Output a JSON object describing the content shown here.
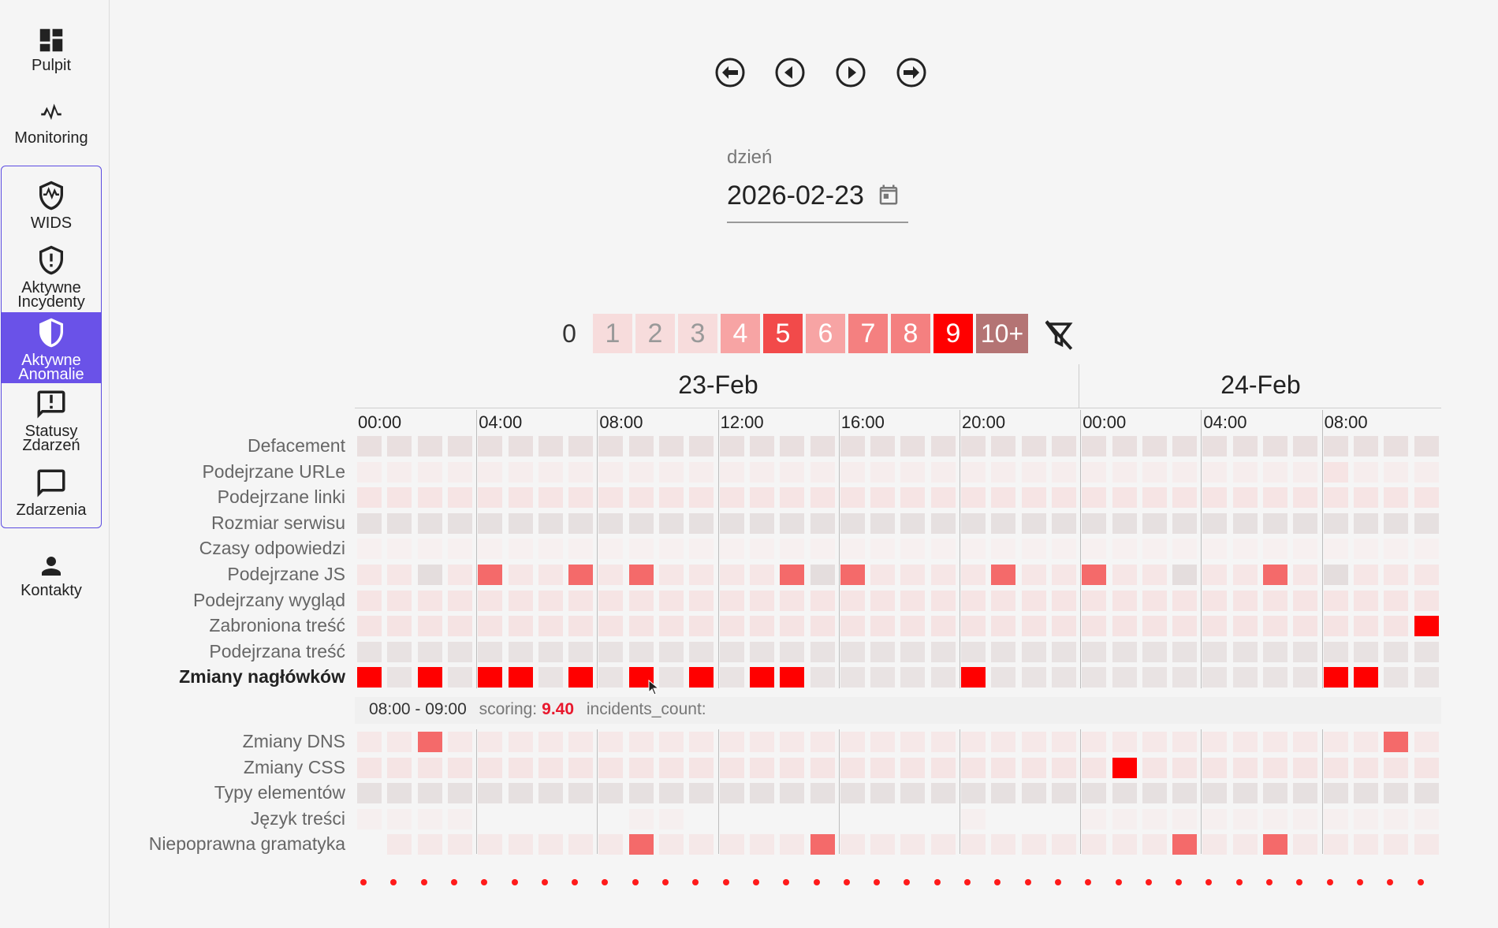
{
  "sidebar": {
    "items": [
      {
        "id": "pulpit",
        "label": "Pulpit",
        "icon": "dashboard-icon"
      },
      {
        "id": "monitoring",
        "label": "Monitoring",
        "icon": "pulse-icon"
      },
      {
        "id": "wids",
        "label": "WIDS",
        "icon": "shield-pulse-icon"
      },
      {
        "id": "incydenty",
        "label_1": "Aktywne",
        "label_2": "Incydenty",
        "icon": "shield-alert-icon"
      },
      {
        "id": "anomalie",
        "label_1": "Aktywne",
        "label_2": "Anomalie",
        "icon": "half-shield-icon",
        "active": true
      },
      {
        "id": "statusy",
        "label_1": "Statusy",
        "label_2": "Zdarzeń",
        "icon": "message-alert-icon"
      },
      {
        "id": "zdarzenia",
        "label": "Zdarzenia",
        "icon": "message-icon"
      },
      {
        "id": "kontakty",
        "label": "Kontakty",
        "icon": "person-icon"
      }
    ]
  },
  "date_picker": {
    "label": "dzień",
    "value": "2026-02-23"
  },
  "legend": {
    "items": [
      {
        "text": "0",
        "bg": "transparent",
        "fg": "#333"
      },
      {
        "text": "1",
        "bg": "#f7dcdc",
        "fg": "#999"
      },
      {
        "text": "2",
        "bg": "#f7dcdc",
        "fg": "#999"
      },
      {
        "text": "3",
        "bg": "#f7dcdc",
        "fg": "#999"
      },
      {
        "text": "4",
        "bg": "#f7a4a4",
        "fg": "#fff"
      },
      {
        "text": "5",
        "bg": "#f24a4a",
        "fg": "#fff"
      },
      {
        "text": "6",
        "bg": "#f7a4a4",
        "fg": "#fff"
      },
      {
        "text": "7",
        "bg": "#f48080",
        "fg": "#fff"
      },
      {
        "text": "8",
        "bg": "#f48080",
        "fg": "#fff"
      },
      {
        "text": "9",
        "bg": "#ff0000",
        "fg": "#fff"
      },
      {
        "text": "10+",
        "bg": "#b47474",
        "fg": "#fff"
      }
    ]
  },
  "heatmap": {
    "days": [
      "23-Feb",
      "24-Feb"
    ],
    "hours": [
      "00:00",
      "04:00",
      "08:00",
      "12:00",
      "16:00",
      "20:00",
      "00:00",
      "04:00",
      "08:00"
    ],
    "rows_top": [
      {
        "label": "Defacement",
        "base": "#e9dfdf",
        "bold": false
      },
      {
        "label": "Podejrzane URLe",
        "base": "#f6eded",
        "bold": false
      },
      {
        "label": "Podejrzane linki",
        "base": "#f6e4e4",
        "bold": false
      },
      {
        "label": "Rozmiar serwisu",
        "base": "#e6e0e0",
        "bold": false
      },
      {
        "label": "Czasy odpowiedzi",
        "base": "#f7f0f0",
        "bold": false
      },
      {
        "label": "Podejrzane JS",
        "base": "#f6e6e6",
        "bold": false
      },
      {
        "label": "Podejrzany wygląd",
        "base": "#f6e4e4",
        "bold": false
      },
      {
        "label": "Zabroniona treść",
        "base": "#f5e3e3",
        "bold": false
      },
      {
        "label": "Podejrzana treść",
        "base": "#e8e2e2",
        "bold": false
      },
      {
        "label": "Zmiany nagłówków",
        "base": "#e9e3e3",
        "bold": true
      }
    ],
    "rows_bottom": [
      {
        "label": "Zmiany DNS",
        "base": "#f6e8e8",
        "bold": false
      },
      {
        "label": "Zmiany CSS",
        "base": "#f5e4e4",
        "bold": false
      },
      {
        "label": "Typy elementów",
        "base": "#e6e0e0",
        "bold": false
      },
      {
        "label": "Język treści",
        "base": "#f6efef",
        "bold": false
      },
      {
        "label": "Niepoprawna gramatyka",
        "base": "#f5e8e8",
        "bold": false
      }
    ],
    "highlights": [
      {
        "row": 5,
        "col": 4,
        "color": "#f46a6a"
      },
      {
        "row": 5,
        "col": 7,
        "color": "#f46a6a"
      },
      {
        "row": 5,
        "col": 9,
        "color": "#f46a6a"
      },
      {
        "row": 5,
        "col": 14,
        "color": "#f46a6a"
      },
      {
        "row": 5,
        "col": 16,
        "color": "#f46a6a"
      },
      {
        "row": 5,
        "col": 21,
        "color": "#f46a6a"
      },
      {
        "row": 5,
        "col": 24,
        "color": "#f46a6a"
      },
      {
        "row": 5,
        "col": 30,
        "color": "#f46a6a"
      },
      {
        "row": 5,
        "col": 2,
        "color": "#e4dddd"
      },
      {
        "row": 5,
        "col": 15,
        "color": "#e4dddd"
      },
      {
        "row": 5,
        "col": 27,
        "color": "#e4dddd"
      },
      {
        "row": 5,
        "col": 32,
        "color": "#e4dddd"
      },
      {
        "row": 7,
        "col": 35,
        "color": "#ff0000"
      },
      {
        "row": 9,
        "col": 0,
        "color": "#ff0000"
      },
      {
        "row": 9,
        "col": 2,
        "color": "#ff0000"
      },
      {
        "row": 9,
        "col": 4,
        "color": "#ff0000"
      },
      {
        "row": 9,
        "col": 5,
        "color": "#ff0000"
      },
      {
        "row": 9,
        "col": 7,
        "color": "#ff0000"
      },
      {
        "row": 9,
        "col": 9,
        "color": "#ff0000"
      },
      {
        "row": 9,
        "col": 11,
        "color": "#ff0000"
      },
      {
        "row": 9,
        "col": 13,
        "color": "#ff0000"
      },
      {
        "row": 9,
        "col": 14,
        "color": "#ff0000"
      },
      {
        "row": 9,
        "col": 20,
        "color": "#ff0000"
      },
      {
        "row": 9,
        "col": 32,
        "color": "#ff0000"
      },
      {
        "row": 9,
        "col": 33,
        "color": "#ff0000"
      },
      {
        "row": 10,
        "col": 2,
        "color": "#f46a6a"
      },
      {
        "row": 10,
        "col": 34,
        "color": "#f46a6a"
      },
      {
        "row": 11,
        "col": 25,
        "color": "#ff0000"
      },
      {
        "row": 14,
        "col": 9,
        "color": "#f46a6a"
      },
      {
        "row": 14,
        "col": 15,
        "color": "#f46a6a"
      },
      {
        "row": 14,
        "col": 27,
        "color": "#f46a6a"
      },
      {
        "row": 14,
        "col": 30,
        "color": "#f46a6a"
      },
      {
        "row": 1,
        "col": 32,
        "color": "#f6e4e4"
      }
    ],
    "empty_cells": [
      {
        "row": 14,
        "col": 0
      },
      {
        "row": 13,
        "col": 4
      },
      {
        "row": 13,
        "col": 5
      },
      {
        "row": 13,
        "col": 6
      },
      {
        "row": 13,
        "col": 7
      },
      {
        "row": 13,
        "col": 8
      },
      {
        "row": 13,
        "col": 11
      },
      {
        "row": 13,
        "col": 12
      },
      {
        "row": 13,
        "col": 13
      },
      {
        "row": 13,
        "col": 14
      },
      {
        "row": 13,
        "col": 15
      },
      {
        "row": 13,
        "col": 16
      },
      {
        "row": 13,
        "col": 17
      },
      {
        "row": 13,
        "col": 18
      },
      {
        "row": 13,
        "col": 19
      },
      {
        "row": 13,
        "col": 21
      },
      {
        "row": 13,
        "col": 22
      },
      {
        "row": 13,
        "col": 23
      }
    ]
  },
  "tooltip": {
    "time": "08:00 - 09:00",
    "scoring_label": "scoring:",
    "scoring_value": "9.40",
    "incidents_label": "incidents_count:"
  }
}
